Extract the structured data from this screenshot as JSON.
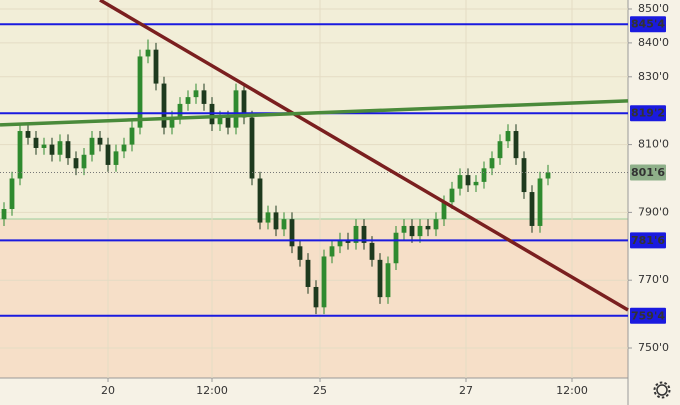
{
  "chart_data": {
    "type": "candlestick",
    "open": [
      788,
      791,
      800,
      814,
      812,
      809,
      810,
      807,
      811,
      806,
      803,
      807,
      812,
      810,
      804,
      808,
      810,
      815,
      836,
      838,
      828,
      815,
      818,
      822,
      824,
      826,
      822,
      816,
      818,
      815,
      826,
      818,
      800,
      787,
      790,
      785,
      788,
      780,
      776,
      768,
      762,
      777,
      780,
      782,
      781,
      786,
      781,
      776,
      765,
      775,
      784,
      786,
      783,
      786,
      785,
      788,
      793,
      797,
      801,
      798,
      799,
      803,
      806,
      811,
      814,
      806,
      796,
      786,
      800
    ],
    "high": [
      793,
      802,
      816,
      816,
      814,
      812,
      812,
      813,
      813,
      808,
      809,
      814,
      814,
      812,
      810,
      812,
      817,
      838,
      841,
      840,
      830,
      820,
      824,
      826,
      828,
      828,
      824,
      820,
      820,
      828,
      828,
      820,
      802,
      792,
      792,
      790,
      790,
      782,
      778,
      770,
      779,
      782,
      784,
      784,
      788,
      788,
      783,
      778,
      777,
      786,
      788,
      788,
      788,
      788,
      790,
      795,
      799,
      803,
      803,
      801,
      805,
      808,
      813,
      816,
      816,
      808,
      798,
      802,
      804
    ],
    "low": [
      786,
      789,
      798,
      810,
      807,
      807,
      805,
      805,
      804,
      801,
      801,
      805,
      808,
      802,
      802,
      806,
      808,
      813,
      834,
      826,
      813,
      813,
      816,
      820,
      822,
      820,
      814,
      814,
      813,
      813,
      816,
      798,
      785,
      785,
      783,
      783,
      778,
      774,
      766,
      760,
      760,
      775,
      778,
      779,
      779,
      779,
      774,
      763,
      763,
      773,
      782,
      781,
      781,
      783,
      783,
      786,
      791,
      795,
      796,
      796,
      797,
      801,
      804,
      809,
      804,
      794,
      784,
      784,
      798
    ],
    "close": [
      791,
      800,
      814,
      812,
      809,
      810,
      807,
      811,
      806,
      803,
      807,
      812,
      810,
      804,
      808,
      810,
      815,
      836,
      838,
      828,
      815,
      818,
      822,
      824,
      826,
      822,
      816,
      818,
      815,
      826,
      818,
      800,
      787,
      790,
      785,
      788,
      780,
      776,
      768,
      762,
      777,
      780,
      782,
      781,
      786,
      781,
      776,
      765,
      775,
      784,
      786,
      783,
      786,
      785,
      788,
      793,
      797,
      801,
      798,
      799,
      803,
      806,
      811,
      814,
      806,
      796,
      786,
      800,
      801.75
    ],
    "up_color": "#2f8a2f",
    "down_color": "#1e3a1e",
    "xlim": [
      0,
      78.5
    ],
    "xticks": [
      {
        "value": 13.5,
        "label": "20"
      },
      {
        "value": 26.5,
        "label": "12:00"
      },
      {
        "value": 40,
        "label": "25"
      },
      {
        "value": 58.25,
        "label": "27"
      },
      {
        "value": 71.5,
        "label": "12:00"
      }
    ],
    "ylim": [
      852.65,
      741.15
    ],
    "yticks": [
      {
        "value": 850,
        "label": "850'0"
      },
      {
        "value": 840,
        "label": "840'0"
      },
      {
        "value": 830,
        "label": "830'0"
      },
      {
        "value": 810,
        "label": "810'0"
      },
      {
        "value": 790,
        "label": "790'0"
      },
      {
        "value": 770,
        "label": "770'0"
      },
      {
        "value": 750,
        "label": "750'0"
      }
    ],
    "grid": true,
    "levels": [
      {
        "value": 845.5,
        "label": "845'4"
      },
      {
        "value": 819.25,
        "label": "819'2"
      },
      {
        "value": 781.75,
        "label": "781'6"
      },
      {
        "value": 759.5,
        "label": "759'4"
      }
    ],
    "level_color": "#1a1adf",
    "last_price": {
      "value": 801.75,
      "label": "801'6"
    },
    "last_color": "#8fb08a",
    "trendlines": [
      {
        "color": "#7a1f1f",
        "x": [
          12.5,
          78.5
        ],
        "y": [
          852.65,
          761.2
        ]
      },
      {
        "color": "#4a8a3a",
        "x": [
          0,
          78.5
        ],
        "y": [
          815.8,
          822.9
        ]
      }
    ]
  }
}
